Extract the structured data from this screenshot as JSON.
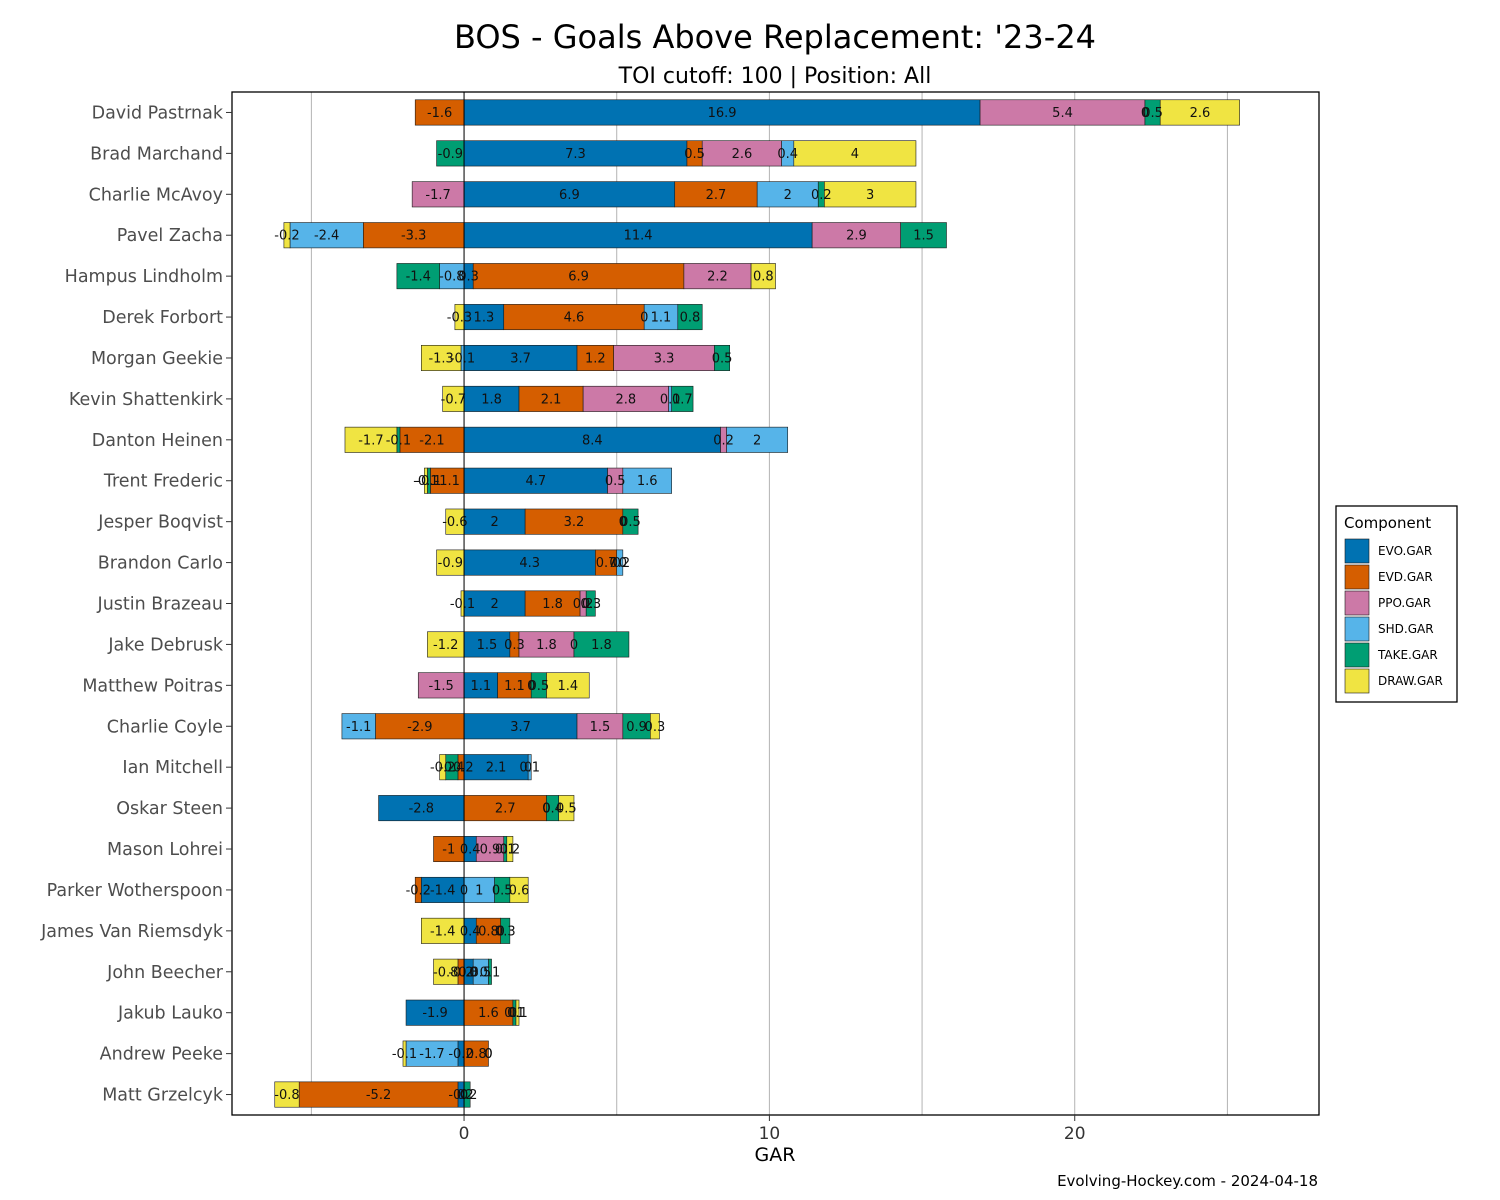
{
  "chart_data": {
    "type": "bar",
    "orientation": "horizontal",
    "stacked": "diverging",
    "title": "BOS - Goals Above Replacement: '23-24",
    "subtitle": "TOI cutoff: 100 | Position: All",
    "xlabel": "GAR",
    "caption": "Evolving-Hockey.com - 2024-04-18",
    "xlim": [
      -7.6,
      28.0
    ],
    "xticks": [
      0,
      10,
      20
    ],
    "grid": true,
    "legend": {
      "title": "Component",
      "position": "right",
      "items": [
        {
          "name": "EVO.GAR",
          "color": "#0072B2"
        },
        {
          "name": "EVD.GAR",
          "color": "#D55E00"
        },
        {
          "name": "PPO.GAR",
          "color": "#CC79A7"
        },
        {
          "name": "SHD.GAR",
          "color": "#56B4E9"
        },
        {
          "name": "TAKE.GAR",
          "color": "#009E73"
        },
        {
          "name": "DRAW.GAR",
          "color": "#F0E442"
        }
      ]
    },
    "component_order": [
      "EVO.GAR",
      "EVD.GAR",
      "PPO.GAR",
      "SHD.GAR",
      "TAKE.GAR",
      "DRAW.GAR"
    ],
    "players": [
      {
        "name": "David Pastrnak",
        "values": [
          16.9,
          -1.6,
          5.4,
          0.0,
          0.5,
          2.6
        ]
      },
      {
        "name": "Brad Marchand",
        "values": [
          7.3,
          0.5,
          2.6,
          0.4,
          -0.9,
          4
        ]
      },
      {
        "name": "Charlie McAvoy",
        "values": [
          6.9,
          2.7,
          -1.7,
          2,
          0.2,
          3
        ]
      },
      {
        "name": "Pavel Zacha",
        "values": [
          11.4,
          -3.3,
          2.9,
          -2.4,
          1.5,
          -0.2
        ]
      },
      {
        "name": "Hampus Lindholm",
        "values": [
          0.3,
          6.9,
          2.2,
          -0.8,
          -1.4,
          0.8
        ]
      },
      {
        "name": "Derek Forbort",
        "values": [
          1.3,
          4.6,
          0,
          1.1,
          0.8,
          -0.3
        ]
      },
      {
        "name": "Morgan Geekie",
        "values": [
          3.7,
          1.2,
          3.3,
          -0.1,
          0.5,
          -1.3
        ]
      },
      {
        "name": "Kevin Shattenkirk",
        "values": [
          1.8,
          2.1,
          2.8,
          0.1,
          0.7,
          -0.7
        ]
      },
      {
        "name": "Danton Heinen",
        "values": [
          8.4,
          -2.1,
          0.2,
          2,
          -0.1,
          -1.7
        ]
      },
      {
        "name": "Trent Frederic",
        "values": [
          4.7,
          -1.1,
          0.5,
          1.6,
          -0.1,
          -0.1
        ]
      },
      {
        "name": "Jesper Boqvist",
        "values": [
          2,
          3.2,
          0,
          0,
          0.5,
          -0.6
        ]
      },
      {
        "name": "Brandon Carlo",
        "values": [
          4.3,
          0.7,
          0,
          0.2,
          0,
          -0.9
        ]
      },
      {
        "name": "Justin Brazeau",
        "values": [
          2,
          1.8,
          0.2,
          0,
          0.3,
          -0.1
        ]
      },
      {
        "name": "Jake Debrusk",
        "values": [
          1.5,
          0.3,
          1.8,
          0,
          1.8,
          -1.2
        ]
      },
      {
        "name": "Matthew Poitras",
        "values": [
          1.1,
          1.1,
          -1.5,
          0,
          0.5,
          1.4
        ]
      },
      {
        "name": "Charlie Coyle",
        "values": [
          3.7,
          -2.9,
          1.5,
          -1.1,
          0.9,
          0.3
        ]
      },
      {
        "name": "Ian Mitchell",
        "values": [
          2.1,
          -0.2,
          0,
          0.1,
          -0.4,
          -0.2
        ]
      },
      {
        "name": "Oskar Steen",
        "values": [
          -2.8,
          2.7,
          0,
          0,
          0.4,
          0.5
        ]
      },
      {
        "name": "Mason Lohrei",
        "values": [
          0.4,
          -1,
          0.9,
          0,
          0.1,
          0.2
        ]
      },
      {
        "name": "Parker Wotherspoon",
        "values": [
          -1.4,
          -0.2,
          0,
          1,
          0.5,
          0.6
        ]
      },
      {
        "name": "James Van Riemsdyk",
        "values": [
          0.4,
          0.8,
          0,
          0,
          0.3,
          -1.4
        ]
      },
      {
        "name": "John Beecher",
        "values": [
          0.3,
          -0.2,
          0,
          0.5,
          0.1,
          -0.8
        ]
      },
      {
        "name": "Jakub Lauko",
        "values": [
          -1.9,
          1.6,
          0,
          0,
          0.1,
          0.1
        ]
      },
      {
        "name": "Andrew Peeke",
        "values": [
          -0.2,
          0.8,
          0,
          -1.7,
          0,
          -0.1
        ]
      },
      {
        "name": "Matt Grzelcyk",
        "values": [
          -0.2,
          -5.2,
          0,
          0,
          0.2,
          -0.8
        ]
      }
    ]
  }
}
